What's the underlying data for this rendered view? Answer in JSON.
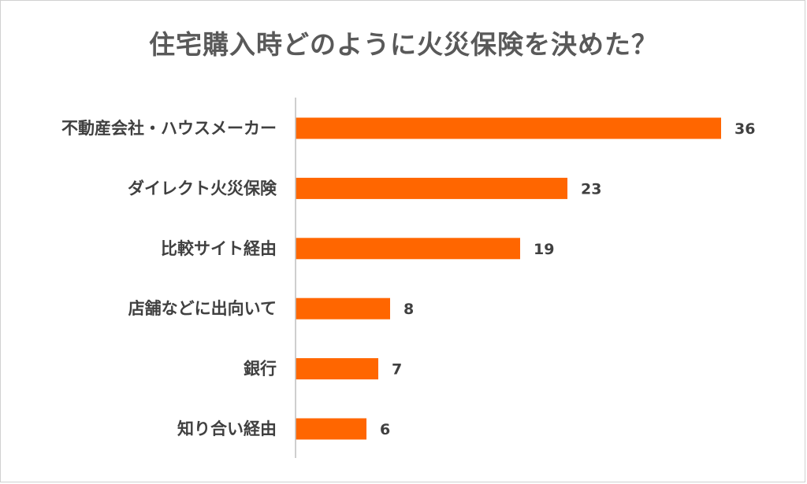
{
  "chart_data": {
    "type": "bar",
    "orientation": "horizontal",
    "title": "住宅購入時どのように火災保険を決めた？",
    "categories": [
      "不動産会社・ハウスメーカー",
      "ダイレクト火災保険",
      "比較サイト経由",
      "店舗などに出向いて",
      "銀行",
      "知り合い経由"
    ],
    "values": [
      36,
      23,
      19,
      8,
      7,
      6
    ],
    "data_labels": [
      "36",
      "23",
      "19",
      "8",
      "7",
      "6"
    ],
    "xlim": [
      0,
      37
    ],
    "grid": false,
    "legend": "none",
    "bar_color": "#FF6600",
    "axis_color": "#BFBFBF"
  }
}
